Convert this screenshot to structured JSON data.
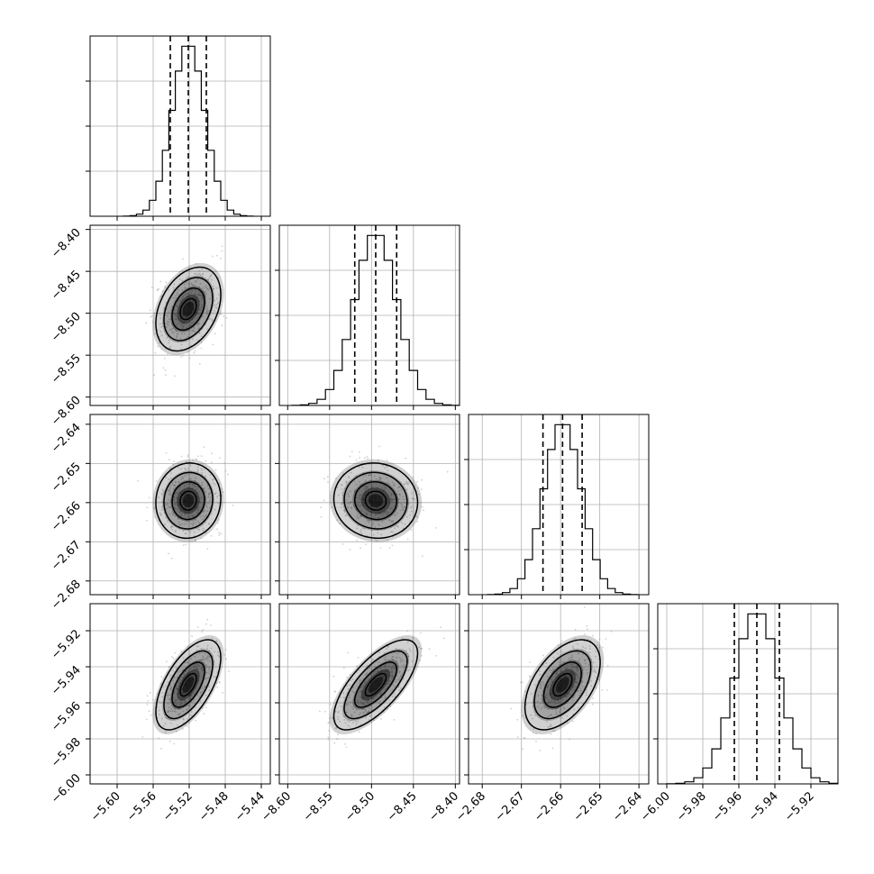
{
  "chart_data": {
    "type": "corner",
    "parameters": [
      {
        "index": 0,
        "mean": -5.521,
        "sigma": 0.018,
        "range": [
          -5.63,
          -5.43
        ],
        "ticks": [
          -5.6,
          -5.56,
          -5.52,
          -5.48,
          -5.44
        ],
        "tick_labels": [
          "−5.60",
          "−5.56",
          "−5.52",
          "−5.48",
          "−5.44"
        ],
        "quantiles": [
          -5.541,
          -5.521,
          -5.501
        ]
      },
      {
        "index": 1,
        "mean": -8.495,
        "sigma": 0.025,
        "range": [
          -8.61,
          -8.395
        ],
        "ticks": [
          -8.6,
          -8.55,
          -8.5,
          -8.45,
          -8.4
        ],
        "tick_labels": [
          "−8.60",
          "−8.55",
          "−8.50",
          "−8.45",
          "−8.40"
        ],
        "quantiles": [
          -8.52,
          -8.495,
          -8.47
        ]
      },
      {
        "index": 2,
        "mean": -2.6595,
        "sigma": 0.0048,
        "range": [
          -2.6835,
          -2.6375
        ],
        "ticks": [
          -2.68,
          -2.67,
          -2.66,
          -2.65,
          -2.64
        ],
        "tick_labels": [
          "−2.68",
          "−2.67",
          "−2.66",
          "−2.65",
          "−2.64"
        ],
        "tick_labels_y": [
          "−2.64",
          "−2.65",
          "−2.66",
          "−2.67",
          "−2.68"
        ],
        "quantiles": [
          -2.6645,
          -2.6595,
          -2.6545
        ]
      },
      {
        "index": 3,
        "mean": -5.95,
        "sigma": 0.0125,
        "range": [
          -6.005,
          -5.905
        ],
        "ticks": [
          -6.0,
          -5.98,
          -5.96,
          -5.94,
          -5.92
        ],
        "tick_labels": [
          "−6.00",
          "−5.98",
          "−5.96",
          "−5.94",
          "−5.92"
        ],
        "tick_labels_y": [
          "−5.92",
          "−5.94",
          "−5.96",
          "−5.98",
          "−6.00"
        ],
        "quantiles": [
          -5.9625,
          -5.95,
          -5.9375
        ]
      }
    ],
    "correlations": [
      [
        1.0,
        0.35,
        0.05,
        0.6
      ],
      [
        0.35,
        1.0,
        -0.05,
        0.7
      ],
      [
        0.05,
        -0.05,
        1.0,
        0.5
      ],
      [
        0.6,
        0.7,
        0.5,
        1.0
      ]
    ],
    "histogram_bins": 20,
    "contour_levels_sigma": [
      0.5,
      1.0,
      1.5,
      2.0
    ],
    "grid": true,
    "colors": {
      "points": "#9a9a9a",
      "density": "#000000",
      "lines": "#000000",
      "grid": "#b0b0b0"
    },
    "xlabel": "",
    "ylabel": "",
    "title": ""
  }
}
